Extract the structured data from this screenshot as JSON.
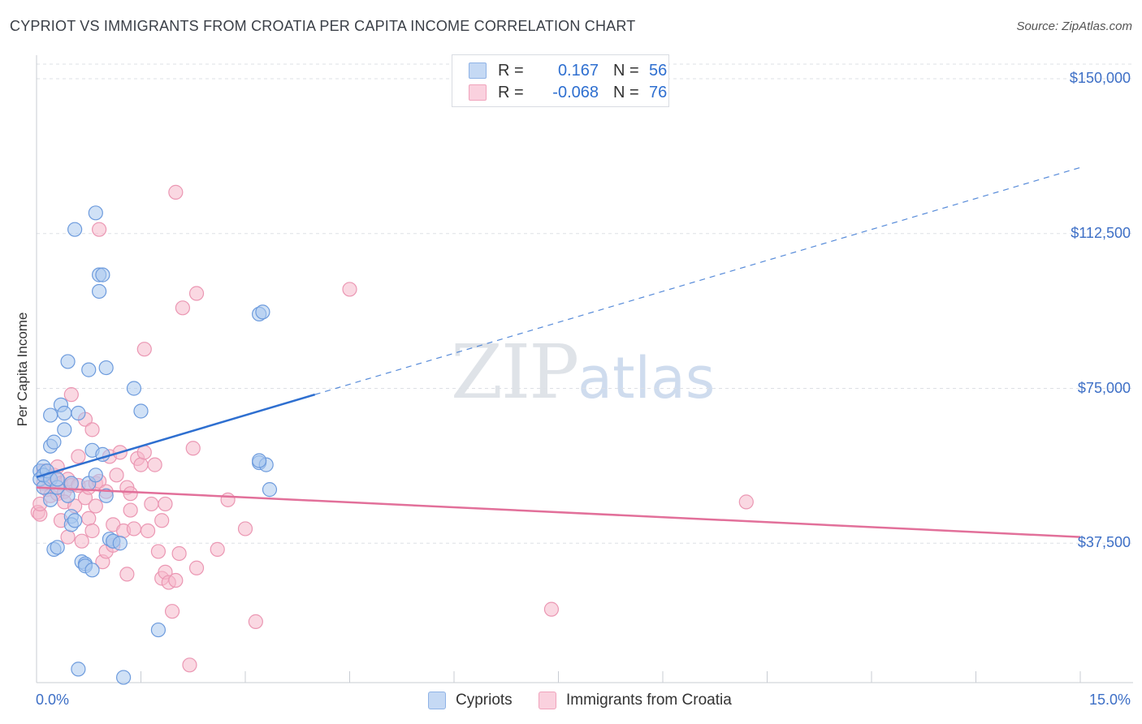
{
  "header": {
    "title": "CYPRIOT VS IMMIGRANTS FROM CROATIA PER CAPITA INCOME CORRELATION CHART",
    "source": "Source: ZipAtlas.com"
  },
  "watermark": {
    "zip": "ZIP",
    "atlas": "atlas"
  },
  "legend": {
    "rows": [
      {
        "r_label": "R =",
        "r_value": "0.167",
        "n_label": "N =",
        "n_value": "56",
        "color": "#a9c8ef"
      },
      {
        "r_label": "R =",
        "r_value": "-0.068",
        "n_label": "N =",
        "n_value": "76",
        "color": "#f5b8cb"
      }
    ]
  },
  "bottom_legend": [
    "Cypriots",
    "Immigrants from Croatia"
  ],
  "colors": {
    "blue": "#3d6fc6",
    "blue_fill": "#a9c8ef",
    "blue_line": "#2e6fd0",
    "pink": "#e2709a",
    "pink_fill": "#f5b8cb",
    "grid": "#dde0e5"
  },
  "chart_data": {
    "type": "scatter",
    "title": "CYPRIOT VS IMMIGRANTS FROM CROATIA PER CAPITA INCOME CORRELATION CHART",
    "xlabel": "",
    "ylabel": "Per Capita Income",
    "xlim": [
      0,
      15
    ],
    "ylim": [
      0,
      150000
    ],
    "x_tick_labels": [
      "0.0%",
      "15.0%"
    ],
    "y_ticks": [
      37500,
      75000,
      112500,
      150000
    ],
    "y_tick_labels": [
      "$37,500",
      "$75,000",
      "$112,500",
      "$150,000"
    ],
    "series": [
      {
        "name": "Cypriots",
        "R": 0.167,
        "N": 56,
        "trend": {
          "x": [
            0,
            4
          ],
          "y": [
            53500,
            73500
          ],
          "dashed_to": [
            15,
            128500
          ]
        },
        "points": [
          [
            0.05,
            55000
          ],
          [
            0.05,
            53000
          ],
          [
            0.1,
            51000
          ],
          [
            0.1,
            56000
          ],
          [
            0.1,
            54000
          ],
          [
            0.15,
            55000
          ],
          [
            0.2,
            48000
          ],
          [
            0.2,
            53000
          ],
          [
            0.2,
            68500
          ],
          [
            0.2,
            61000
          ],
          [
            0.25,
            62000
          ],
          [
            0.25,
            36000
          ],
          [
            0.3,
            51000
          ],
          [
            0.3,
            53000
          ],
          [
            0.3,
            36500
          ],
          [
            0.35,
            71000
          ],
          [
            0.4,
            65000
          ],
          [
            0.4,
            69000
          ],
          [
            0.45,
            49000
          ],
          [
            0.45,
            81500
          ],
          [
            0.5,
            44000
          ],
          [
            0.5,
            42000
          ],
          [
            0.5,
            52000
          ],
          [
            0.55,
            43000
          ],
          [
            0.55,
            113500
          ],
          [
            0.6,
            7000
          ],
          [
            0.6,
            69000
          ],
          [
            0.65,
            33000
          ],
          [
            0.7,
            32500
          ],
          [
            0.7,
            32000
          ],
          [
            0.75,
            79500
          ],
          [
            0.75,
            52000
          ],
          [
            0.8,
            31000
          ],
          [
            0.8,
            60000
          ],
          [
            0.85,
            117500
          ],
          [
            0.85,
            54000
          ],
          [
            0.9,
            98500
          ],
          [
            0.9,
            102500
          ],
          [
            0.95,
            102500
          ],
          [
            0.95,
            59000
          ],
          [
            1.0,
            80000
          ],
          [
            1.0,
            49000
          ],
          [
            1.05,
            38500
          ],
          [
            1.1,
            38000
          ],
          [
            1.1,
            38000
          ],
          [
            1.2,
            37500
          ],
          [
            1.25,
            5000
          ],
          [
            1.4,
            75000
          ],
          [
            1.5,
            69500
          ],
          [
            1.75,
            16500
          ],
          [
            3.2,
            93000
          ],
          [
            3.25,
            93500
          ],
          [
            3.2,
            57000
          ],
          [
            3.35,
            50500
          ],
          [
            3.3,
            56500
          ],
          [
            3.2,
            57500
          ]
        ]
      },
      {
        "name": "Immigrants from Croatia",
        "R": -0.068,
        "N": 76,
        "trend": {
          "x": [
            0,
            15
          ],
          "y": [
            51000,
            39000
          ]
        },
        "points": [
          [
            0.02,
            45000
          ],
          [
            0.05,
            44500
          ],
          [
            0.05,
            47000
          ],
          [
            0.1,
            52000
          ],
          [
            0.1,
            55000
          ],
          [
            0.15,
            50500
          ],
          [
            0.2,
            49000
          ],
          [
            0.2,
            53000
          ],
          [
            0.25,
            54000
          ],
          [
            0.3,
            56000
          ],
          [
            0.3,
            49500
          ],
          [
            0.35,
            43000
          ],
          [
            0.35,
            52000
          ],
          [
            0.4,
            50000
          ],
          [
            0.4,
            47500
          ],
          [
            0.45,
            53000
          ],
          [
            0.45,
            39000
          ],
          [
            0.5,
            73500
          ],
          [
            0.5,
            51500
          ],
          [
            0.55,
            46500
          ],
          [
            0.6,
            51500
          ],
          [
            0.6,
            58500
          ],
          [
            0.65,
            38000
          ],
          [
            0.7,
            48500
          ],
          [
            0.7,
            67500
          ],
          [
            0.75,
            43500
          ],
          [
            0.75,
            51000
          ],
          [
            0.8,
            40500
          ],
          [
            0.8,
            65000
          ],
          [
            0.85,
            46500
          ],
          [
            0.85,
            52000
          ],
          [
            0.9,
            113500
          ],
          [
            0.9,
            52500
          ],
          [
            0.95,
            33000
          ],
          [
            1.0,
            35500
          ],
          [
            1.0,
            50000
          ],
          [
            1.05,
            58500
          ],
          [
            1.1,
            42000
          ],
          [
            1.1,
            37000
          ],
          [
            1.15,
            54000
          ],
          [
            1.2,
            59500
          ],
          [
            1.25,
            40500
          ],
          [
            1.3,
            30000
          ],
          [
            1.3,
            51000
          ],
          [
            1.35,
            49500
          ],
          [
            1.35,
            45500
          ],
          [
            1.4,
            41000
          ],
          [
            1.45,
            58000
          ],
          [
            1.5,
            56500
          ],
          [
            1.55,
            59500
          ],
          [
            1.55,
            84500
          ],
          [
            1.6,
            40500
          ],
          [
            1.65,
            47000
          ],
          [
            1.7,
            56500
          ],
          [
            1.75,
            35500
          ],
          [
            1.8,
            43000
          ],
          [
            1.85,
            47000
          ],
          [
            1.8,
            29000
          ],
          [
            1.85,
            30500
          ],
          [
            1.9,
            28000
          ],
          [
            1.95,
            21000
          ],
          [
            2.0,
            28500
          ],
          [
            2.0,
            122500
          ],
          [
            2.05,
            35000
          ],
          [
            2.1,
            94500
          ],
          [
            2.2,
            8000
          ],
          [
            2.25,
            60500
          ],
          [
            2.3,
            98000
          ],
          [
            2.3,
            31500
          ],
          [
            2.6,
            36000
          ],
          [
            2.75,
            48000
          ],
          [
            3.0,
            41000
          ],
          [
            3.15,
            18500
          ],
          [
            4.5,
            99000
          ],
          [
            7.4,
            21500
          ],
          [
            10.2,
            47500
          ]
        ]
      }
    ]
  }
}
